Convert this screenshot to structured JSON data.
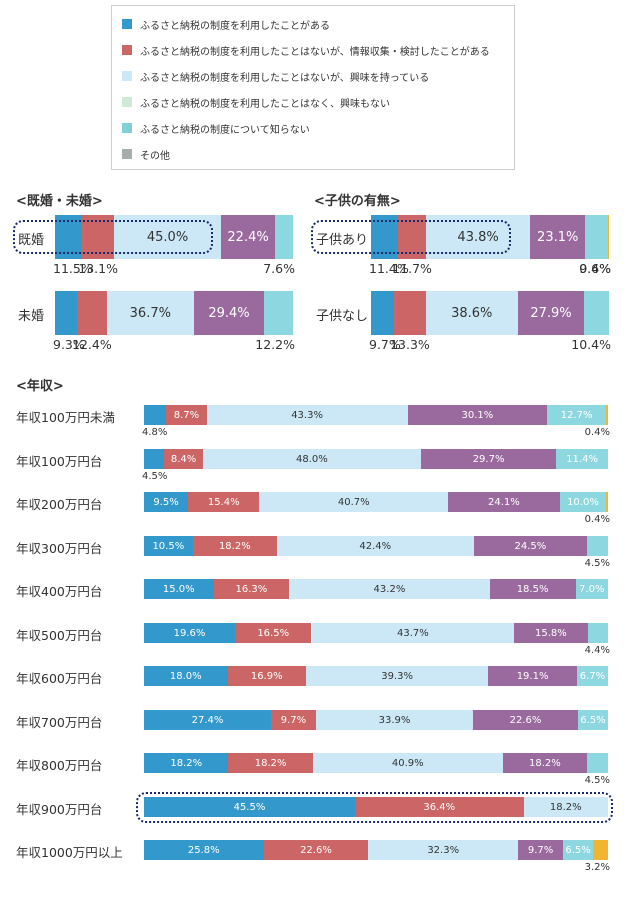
{
  "legend": [
    {
      "label": "ふるさと納税の制度を利用したことがある",
      "color": "#3399cc"
    },
    {
      "label": "ふるさと納税の制度を利用したことはないが、情報収集・検討したことがある",
      "color": "#cc6666"
    },
    {
      "label": "ふるさと納税の制度を利用したことはないが、興味を持っている",
      "color": "#cce8f7"
    },
    {
      "label": "ふるさと納税の制度を利用したことはなく、興味もない",
      "color": "#cfe9d6"
    },
    {
      "label": "ふるさと納税の制度について知らない",
      "color": "#80d0dc"
    },
    {
      "label": "その他",
      "color": "#a6aeaa"
    }
  ],
  "colors": [
    "#3399cc",
    "#cc6666",
    "#cce8f7",
    "#9a6a9e",
    "#8dd8e0",
    "#f2b531"
  ],
  "titles": {
    "marital": "<既婚・未婚>",
    "children": "<子供の有無>",
    "income": "<年収>"
  },
  "chart_data": [
    {
      "type": "bar",
      "orientation": "horizontal-stacked",
      "title": "<既婚・未婚>",
      "categories": [
        "既婚",
        "未婚"
      ],
      "rows": [
        {
          "label": "既婚",
          "values": [
            11.5,
            13.1,
            45.0,
            22.4,
            7.6,
            0
          ],
          "highlight": true
        },
        {
          "label": "未婚",
          "values": [
            9.3,
            12.4,
            36.7,
            29.4,
            12.2,
            0
          ],
          "highlight": false
        }
      ]
    },
    {
      "type": "bar",
      "orientation": "horizontal-stacked",
      "title": "<子供の有無>",
      "categories": [
        "子供あり",
        "子供なし"
      ],
      "rows": [
        {
          "label": "子供あり",
          "values": [
            11.4,
            11.7,
            43.8,
            23.1,
            9.6,
            0.4
          ],
          "highlight": true
        },
        {
          "label": "子供なし",
          "values": [
            9.7,
            13.3,
            38.6,
            27.9,
            10.4,
            0
          ],
          "highlight": false
        }
      ]
    },
    {
      "type": "bar",
      "orientation": "horizontal-stacked",
      "title": "<年収>",
      "categories": [
        "年収100万円未満",
        "年収100万円台",
        "年収200万円台",
        "年収300万円台",
        "年収400万円台",
        "年収500万円台",
        "年収600万円台",
        "年収700万円台",
        "年収800万円台",
        "年収900万円台",
        "年収1000万円以上"
      ],
      "rows": [
        {
          "label": "年収100万円未満",
          "values": [
            4.8,
            8.7,
            43.3,
            30.1,
            12.7,
            0.4
          ]
        },
        {
          "label": "年収100万円台",
          "values": [
            4.5,
            8.4,
            48.0,
            29.7,
            11.4,
            0
          ]
        },
        {
          "label": "年収200万円台",
          "values": [
            9.5,
            15.4,
            40.7,
            24.1,
            10.0,
            0.4
          ]
        },
        {
          "label": "年収300万円台",
          "values": [
            10.5,
            18.2,
            42.4,
            24.5,
            4.5,
            0
          ]
        },
        {
          "label": "年収400万円台",
          "values": [
            15.0,
            16.3,
            43.2,
            18.5,
            7.0,
            0
          ]
        },
        {
          "label": "年収500万円台",
          "values": [
            19.6,
            16.5,
            43.7,
            15.8,
            4.4,
            0
          ]
        },
        {
          "label": "年収600万円台",
          "values": [
            18.0,
            16.9,
            39.3,
            19.1,
            6.7,
            0
          ]
        },
        {
          "label": "年収700万円台",
          "values": [
            27.4,
            9.7,
            33.9,
            22.6,
            6.5,
            0
          ]
        },
        {
          "label": "年収800万円台",
          "values": [
            18.2,
            18.2,
            40.9,
            18.2,
            4.5,
            0
          ]
        },
        {
          "label": "年収900万円台",
          "values": [
            45.5,
            36.4,
            18.2,
            0,
            0,
            0
          ],
          "highlight": true
        },
        {
          "label": "年収1000万円以上",
          "values": [
            25.8,
            22.6,
            32.3,
            9.7,
            6.5,
            3.2
          ]
        }
      ]
    }
  ]
}
